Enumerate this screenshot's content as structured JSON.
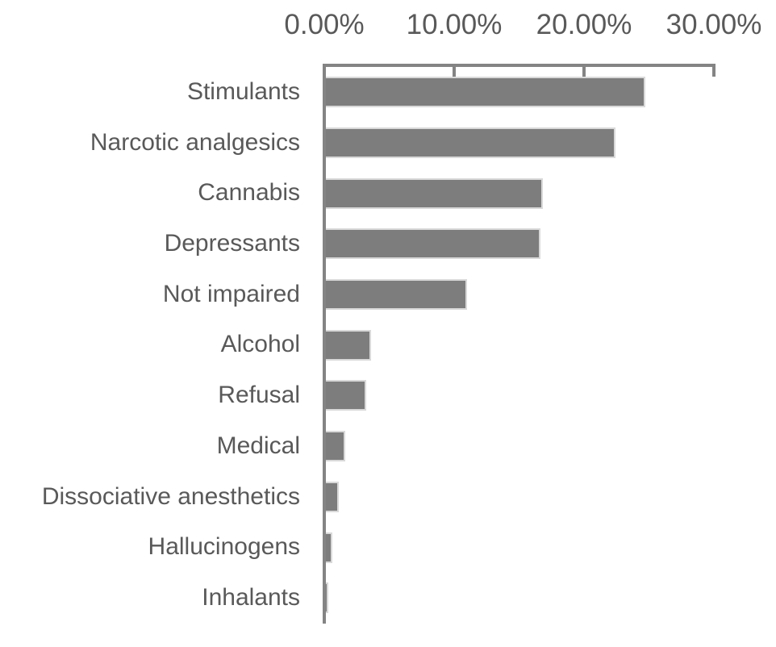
{
  "chart_data": {
    "type": "bar",
    "orientation": "horizontal",
    "title": "",
    "categories": [
      "Stimulants",
      "Narcotic analgesics",
      "Cannabis",
      "Depressants",
      "Not impaired",
      "Alcohol",
      "Refusal",
      "Medical",
      "Dissociative anesthetics",
      "Hallucinogens",
      "Inhalants"
    ],
    "values": [
      24.7,
      22.4,
      16.8,
      16.6,
      10.9,
      3.5,
      3.1,
      1.5,
      1.0,
      0.5,
      0.2
    ],
    "value_unit": "%",
    "x_ticks": [
      0,
      10,
      20,
      30
    ],
    "x_tick_labels": [
      "0.00%",
      "10.00%",
      "20.00%",
      "30.00%"
    ],
    "xlim": [
      0,
      30
    ],
    "grid": false,
    "legend": false,
    "axis_position": "top",
    "colors": {
      "bar_fill": "#7d7d7d",
      "bar_border": "#d9d9d9",
      "axis": "#848484",
      "text": "#595959",
      "background": "#ffffff"
    }
  }
}
